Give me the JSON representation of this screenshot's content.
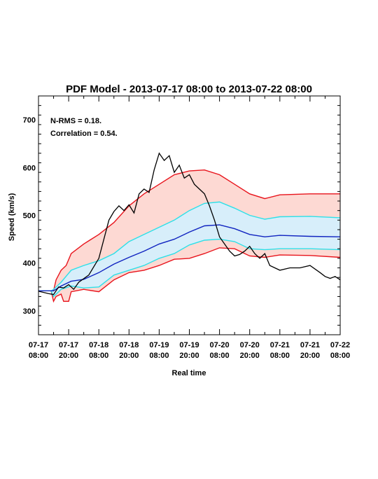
{
  "chart_data": {
    "type": "area",
    "title": "PDF Model - 2013-07-17 08:00 to 2013-07-22 08:00",
    "xlabel": "Real time",
    "ylabel": "Speed (km/s)",
    "xlim": [
      "2013-07-17 08:00",
      "2013-07-22 08:00"
    ],
    "ylim": [
      250,
      750
    ],
    "x_tick_labels": [
      {
        "date": "07-17",
        "time": "08:00",
        "t": "2013-07-17 08:00"
      },
      {
        "date": "07-17",
        "time": "20:00",
        "t": "2013-07-17 20:00"
      },
      {
        "date": "07-18",
        "time": "08:00",
        "t": "2013-07-18 08:00"
      },
      {
        "date": "07-18",
        "time": "20:00",
        "t": "2013-07-18 20:00"
      },
      {
        "date": "07-19",
        "time": "08:00",
        "t": "2013-07-19 08:00"
      },
      {
        "date": "07-19",
        "time": "20:00",
        "t": "2013-07-19 20:00"
      },
      {
        "date": "07-20",
        "time": "08:00",
        "t": "2013-07-20 08:00"
      },
      {
        "date": "07-20",
        "time": "20:00",
        "t": "2013-07-20 20:00"
      },
      {
        "date": "07-21",
        "time": "08:00",
        "t": "2013-07-21 08:00"
      },
      {
        "date": "07-21",
        "time": "20:00",
        "t": "2013-07-21 20:00"
      },
      {
        "date": "07-22",
        "time": "08:00",
        "t": "2013-07-22 08:00"
      }
    ],
    "y_ticks": [
      300,
      400,
      500,
      600,
      700
    ],
    "annotations": [
      "N-RMS = 0.18.",
      "Correlation = 0.54."
    ],
    "grid": false,
    "colors": {
      "outer_band_fill": "#fdd9d3",
      "inner_band_fill": "#d7eefa",
      "outer_line": "#e8141c",
      "inner_line": "#2de0e8",
      "median_line": "#1023c0",
      "observed_line": "#000000"
    },
    "time_unit": "hours",
    "outer_upper": {
      "x": [
        "2013-07-17 08:00",
        "2013-07-17 09:00",
        "2013-07-17 11:00",
        "2013-07-17 13:00",
        "2013-07-17 14:00",
        "2013-07-17 15:00",
        "2013-07-17 17:00",
        "2013-07-17 19:00",
        "2013-07-17 21:00",
        "2013-07-18 02:00",
        "2013-07-18 08:00",
        "2013-07-18 14:00",
        "2013-07-18 20:00",
        "2013-07-19 02:00",
        "2013-07-19 08:00",
        "2013-07-19 14:00",
        "2013-07-19 20:00",
        "2013-07-20 02:00",
        "2013-07-20 08:00",
        "2013-07-20 14:00",
        "2013-07-20 20:00",
        "2013-07-21 02:00",
        "2013-07-21 08:00",
        "2013-07-21 20:00",
        "2013-07-22 08:00"
      ],
      "y": [
        342,
        342,
        342,
        342,
        342,
        365,
        385,
        395,
        420,
        440,
        460,
        485,
        520,
        545,
        565,
        585,
        593,
        595,
        585,
        565,
        545,
        535,
        543,
        545,
        545
      ]
    },
    "inner_upper": {
      "x": [
        "2013-07-17 08:00",
        "2013-07-17 13:00",
        "2013-07-17 14:00",
        "2013-07-17 17:00",
        "2013-07-17 21:00",
        "2013-07-18 02:00",
        "2013-07-18 08:00",
        "2013-07-18 14:00",
        "2013-07-18 20:00",
        "2013-07-19 02:00",
        "2013-07-19 08:00",
        "2013-07-19 14:00",
        "2013-07-19 20:00",
        "2013-07-20 02:00",
        "2013-07-20 08:00",
        "2013-07-20 14:00",
        "2013-07-20 20:00",
        "2013-07-21 02:00",
        "2013-07-21 08:00",
        "2013-07-21 20:00",
        "2013-07-22 08:00"
      ],
      "y": [
        342,
        342,
        345,
        360,
        385,
        395,
        405,
        420,
        445,
        460,
        475,
        490,
        510,
        525,
        528,
        515,
        500,
        492,
        497,
        498,
        495
      ]
    },
    "median": {
      "x": [
        "2013-07-17 08:00",
        "2013-07-17 13:00",
        "2013-07-17 14:00",
        "2013-07-17 17:00",
        "2013-07-17 21:00",
        "2013-07-18 02:00",
        "2013-07-18 08:00",
        "2013-07-18 14:00",
        "2013-07-18 20:00",
        "2013-07-19 02:00",
        "2013-07-19 08:00",
        "2013-07-19 14:00",
        "2013-07-19 20:00",
        "2013-07-20 02:00",
        "2013-07-20 08:00",
        "2013-07-20 14:00",
        "2013-07-20 20:00",
        "2013-07-21 02:00",
        "2013-07-21 08:00",
        "2013-07-21 20:00",
        "2013-07-22 08:00"
      ],
      "y": [
        342,
        342,
        342,
        352,
        362,
        366,
        380,
        398,
        412,
        425,
        440,
        450,
        465,
        478,
        480,
        472,
        460,
        455,
        458,
        456,
        455
      ]
    },
    "inner_lower": {
      "x": [
        "2013-07-17 08:00",
        "2013-07-17 13:00",
        "2013-07-17 14:00",
        "2013-07-17 17:00",
        "2013-07-17 21:00",
        "2013-07-18 02:00",
        "2013-07-18 08:00",
        "2013-07-18 14:00",
        "2013-07-18 20:00",
        "2013-07-19 02:00",
        "2013-07-19 08:00",
        "2013-07-19 14:00",
        "2013-07-19 20:00",
        "2013-07-20 02:00",
        "2013-07-20 08:00",
        "2013-07-20 14:00",
        "2013-07-20 20:00",
        "2013-07-21 02:00",
        "2013-07-21 08:00",
        "2013-07-21 20:00",
        "2013-07-22 08:00"
      ],
      "y": [
        342,
        342,
        330,
        345,
        352,
        348,
        350,
        375,
        385,
        395,
        410,
        420,
        438,
        448,
        450,
        445,
        430,
        428,
        430,
        430,
        428
      ]
    },
    "outer_lower": {
      "x": [
        "2013-07-17 08:00",
        "2013-07-17 13:00",
        "2013-07-17 14:00",
        "2013-07-17 15:00",
        "2013-07-17 17:00",
        "2013-07-17 18:00",
        "2013-07-17 20:00",
        "2013-07-17 21:00",
        "2013-07-18 02:00",
        "2013-07-18 08:00",
        "2013-07-18 14:00",
        "2013-07-18 20:00",
        "2013-07-19 02:00",
        "2013-07-19 08:00",
        "2013-07-19 14:00",
        "2013-07-19 20:00",
        "2013-07-20 02:00",
        "2013-07-20 08:00",
        "2013-07-20 14:00",
        "2013-07-20 20:00",
        "2013-07-21 02:00",
        "2013-07-21 08:00",
        "2013-07-21 20:00",
        "2013-07-22 08:00"
      ],
      "y": [
        342,
        342,
        320,
        330,
        335,
        320,
        320,
        340,
        345,
        340,
        365,
        380,
        385,
        395,
        408,
        410,
        420,
        432,
        430,
        415,
        412,
        417,
        416,
        412
      ]
    },
    "observed": {
      "x": [
        "2013-07-17 08:00",
        "2013-07-17 12:00",
        "2013-07-17 14:00",
        "2013-07-17 16:00",
        "2013-07-17 18:00",
        "2013-07-17 20:00",
        "2013-07-17 22:00",
        "2013-07-18 00:00",
        "2013-07-18 04:00",
        "2013-07-18 08:00",
        "2013-07-18 10:00",
        "2013-07-18 12:00",
        "2013-07-18 14:00",
        "2013-07-18 16:00",
        "2013-07-18 18:00",
        "2013-07-18 20:00",
        "2013-07-18 22:00",
        "2013-07-19 00:00",
        "2013-07-19 02:00",
        "2013-07-19 04:00",
        "2013-07-19 06:00",
        "2013-07-19 08:00",
        "2013-07-19 10:00",
        "2013-07-19 12:00",
        "2013-07-19 14:00",
        "2013-07-19 16:00",
        "2013-07-19 18:00",
        "2013-07-19 20:00",
        "2013-07-19 22:00",
        "2013-07-20 00:00",
        "2013-07-20 02:00",
        "2013-07-20 04:00",
        "2013-07-20 06:00",
        "2013-07-20 08:00",
        "2013-07-20 10:00",
        "2013-07-20 12:00",
        "2013-07-20 14:00",
        "2013-07-20 16:00",
        "2013-07-20 18:00",
        "2013-07-20 20:00",
        "2013-07-20 22:00",
        "2013-07-21 00:00",
        "2013-07-21 02:00",
        "2013-07-21 04:00",
        "2013-07-21 06:00",
        "2013-07-21 08:00",
        "2013-07-21 12:00",
        "2013-07-21 16:00",
        "2013-07-21 20:00",
        "2013-07-21 24:00",
        "2013-07-22 02:00",
        "2013-07-22 04:00",
        "2013-07-22 06:00",
        "2013-07-22 08:00"
      ],
      "y": [
        341,
        336,
        334,
        350,
        348,
        355,
        345,
        360,
        375,
        410,
        450,
        490,
        508,
        520,
        510,
        522,
        505,
        545,
        555,
        548,
        595,
        630,
        615,
        625,
        590,
        605,
        578,
        585,
        565,
        555,
        545,
        520,
        490,
        455,
        440,
        425,
        415,
        418,
        425,
        435,
        420,
        410,
        420,
        395,
        390,
        385,
        390,
        390,
        395,
        380,
        372,
        368,
        372,
        365
      ]
    }
  }
}
